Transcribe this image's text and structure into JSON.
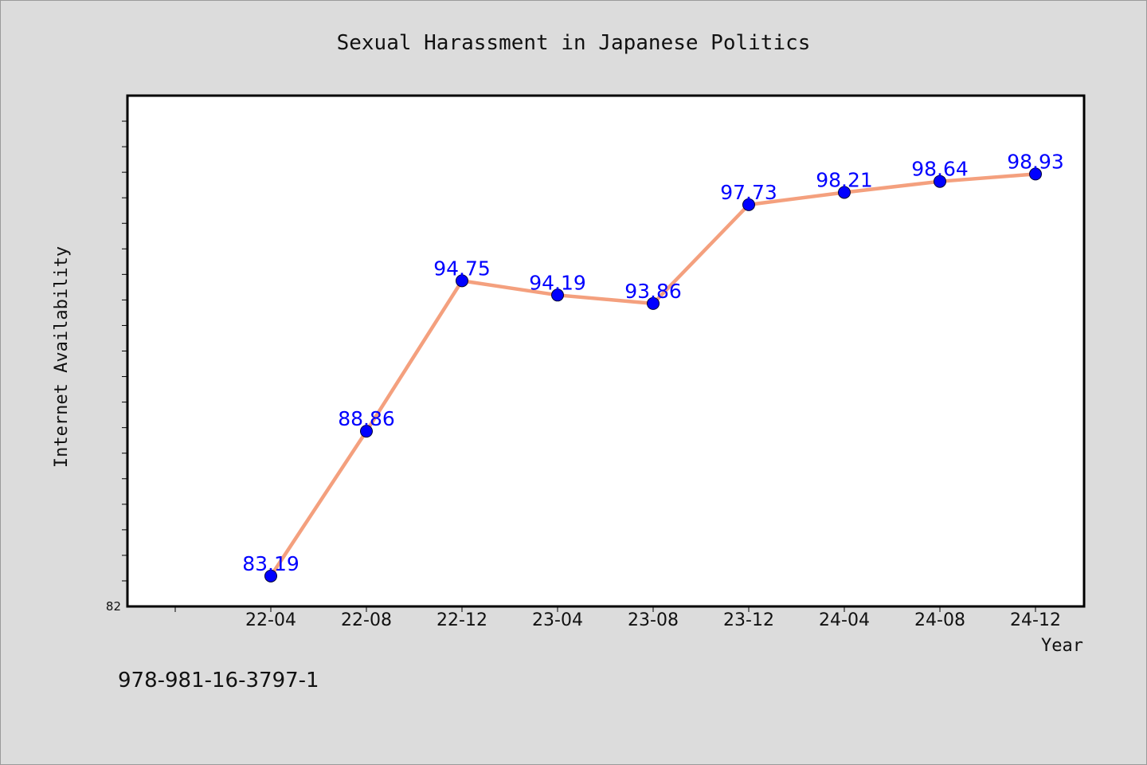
{
  "chart_data": {
    "type": "line",
    "title": "Sexual Harassment in Japanese Politics",
    "xlabel": "Year",
    "ylabel": "Internet Availability",
    "categories": [
      "22-04",
      "22-08",
      "22-12",
      "23-04",
      "23-08",
      "23-12",
      "24-04",
      "24-08",
      "24-12"
    ],
    "values": [
      83.19,
      88.86,
      94.75,
      94.19,
      93.86,
      97.73,
      98.21,
      98.64,
      98.93
    ],
    "data_labels": [
      "83.19",
      "88.86",
      "94.75",
      "94.19",
      "93.86",
      "97.73",
      "98.21",
      "98.64",
      "98.93"
    ],
    "ylim": [
      82,
      102
    ],
    "ytick_labels": [
      "82"
    ],
    "line_color": "#f4a07e",
    "marker_color": "#0000ff",
    "label_color": "#0000ff",
    "grid": false,
    "legend": "none"
  },
  "footer": {
    "isbn": "978-981-16-3797-1"
  }
}
